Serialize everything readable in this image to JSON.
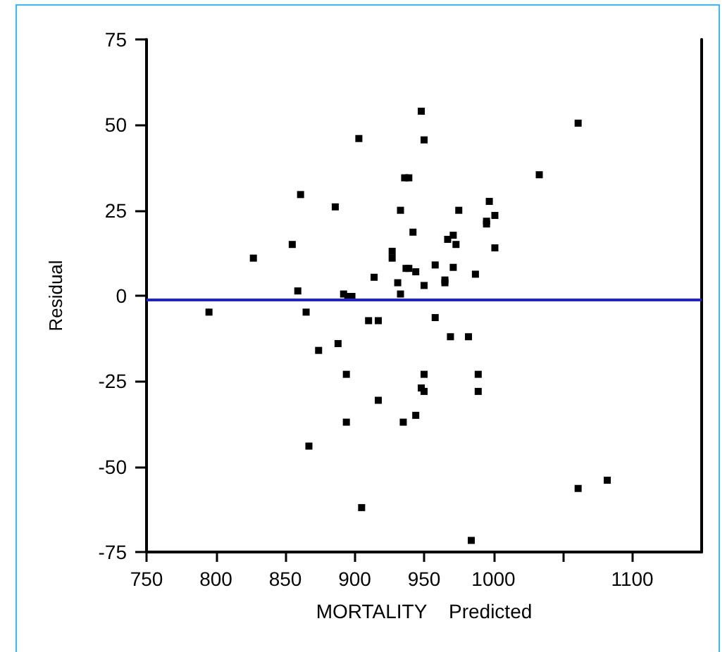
{
  "chart_data": {
    "type": "scatter",
    "xlabel": "MORTALITY    Predicted",
    "ylabel": "Residual",
    "xlim": [
      750,
      1150
    ],
    "xticks": [
      750,
      800,
      850,
      900,
      950,
      1000,
      {
        "value": 1050,
        "label": null
      },
      1100
    ],
    "ylim": [
      -75,
      75
    ],
    "yticks": [
      -75,
      -50,
      -25,
      0,
      25,
      50,
      75
    ],
    "marker": "square",
    "grid": false,
    "ref_lines": [
      {
        "axis": "y",
        "value": -1,
        "label": null,
        "color": "#2222cc",
        "line_style": "solid"
      }
    ],
    "series": [
      {
        "color": "#000000",
        "x": [
          948,
          903,
          950,
          936,
          939,
          861,
          886,
          933,
          942,
          855,
          827,
          927,
          927,
          937,
          939,
          944,
          914,
          931,
          933,
          859,
          892,
          895,
          898,
          795,
          865,
          910,
          917,
          874,
          888,
          1061,
          1033,
          997,
          975,
          1001,
          995,
          995,
          971,
          967,
          973,
          1001,
          958,
          971,
          987,
          965,
          965,
          950,
          958,
          969,
          982,
          894,
          950,
          917,
          948,
          950,
          894,
          935,
          944,
          867,
          905,
          989,
          989,
          1061,
          1082,
          984
        ],
        "values": [
          54,
          46,
          45.6,
          34.5,
          34.5,
          29.6,
          26,
          25,
          18.6,
          15,
          11,
          13,
          11,
          8,
          8,
          7,
          5.4,
          3.8,
          0.5,
          1.4,
          0.5,
          -0.2,
          -0.2,
          -4.8,
          -4.8,
          -7.3,
          -7.3,
          -16,
          -14,
          50.5,
          35.4,
          27.6,
          25,
          23.5,
          21.8,
          21,
          17.7,
          16.5,
          15,
          14,
          9,
          8.3,
          6.3,
          4.6,
          3.8,
          3,
          -6.4,
          -12,
          -12,
          -23,
          -23,
          -30.6,
          -27,
          -28,
          -37,
          -37,
          -35,
          -44,
          -62,
          -23,
          -28,
          -56.4,
          -54,
          -71.6
        ]
      }
    ]
  }
}
